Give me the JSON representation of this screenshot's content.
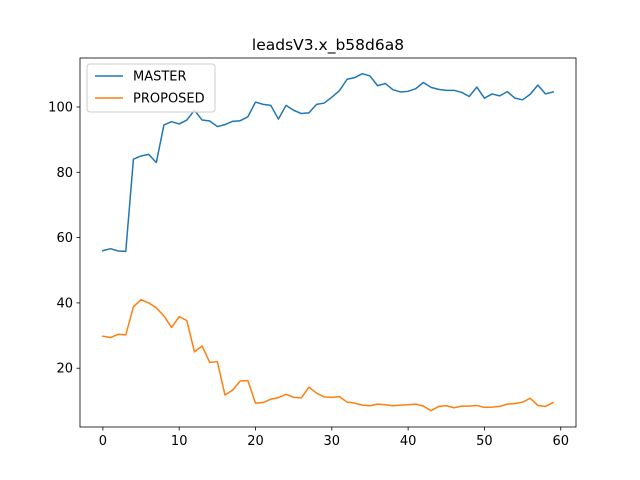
{
  "chart_data": {
    "type": "line",
    "title": "leadsV3.x_b58d6a8",
    "xlabel": "",
    "ylabel": "",
    "xlim": [
      -3,
      62
    ],
    "ylim": [
      2,
      115
    ],
    "xticks": [
      0,
      10,
      20,
      30,
      40,
      50,
      60
    ],
    "yticks": [
      20,
      40,
      60,
      80,
      100
    ],
    "grid": false,
    "legend": "top-left",
    "x": [
      0,
      1,
      2,
      3,
      4,
      5,
      6,
      7,
      8,
      9,
      10,
      11,
      12,
      13,
      14,
      15,
      16,
      17,
      18,
      19,
      20,
      21,
      22,
      23,
      24,
      25,
      26,
      27,
      28,
      29,
      30,
      31,
      32,
      33,
      34,
      35,
      36,
      37,
      38,
      39,
      40,
      41,
      42,
      43,
      44,
      45,
      46,
      47,
      48,
      49,
      50,
      51,
      52,
      53,
      54,
      55,
      56,
      57,
      58,
      59
    ],
    "series": [
      {
        "name": "MASTER",
        "color": "#1f77b4",
        "values": [
          56,
          56.6,
          55.9,
          55.8,
          84,
          85,
          85.5,
          83,
          94.5,
          95.5,
          94.8,
          96,
          99,
          96,
          95.7,
          94,
          94.6,
          95.6,
          95.8,
          97,
          101.5,
          100.8,
          100.5,
          96.3,
          100.5,
          99,
          98,
          98.2,
          100.8,
          101.2,
          103,
          105,
          108.5,
          109,
          110.2,
          109.5,
          106.5,
          107.2,
          105.3,
          104.6,
          104.8,
          105.6,
          107.5,
          106,
          105.4,
          105.1,
          105.1,
          104.5,
          103.2,
          106.1,
          102.7,
          104,
          103.4,
          104.7,
          102.7,
          102.2,
          103.9,
          106.7,
          104,
          104.6
        ]
      },
      {
        "name": "PROPOSED",
        "color": "#ff7f0e",
        "values": [
          29.8,
          29.4,
          30.4,
          30.2,
          38.8,
          41,
          40,
          38.5,
          36,
          32.5,
          35.8,
          34.6,
          25,
          26.8,
          21.8,
          22,
          11.8,
          13.3,
          16.1,
          16.2,
          9.3,
          9.5,
          10.5,
          11,
          12,
          11.1,
          10.9,
          14.2,
          12.4,
          11.2,
          11.1,
          11.3,
          9.6,
          9.3,
          8.7,
          8.5,
          9,
          8.8,
          8.5,
          8.7,
          8.8,
          9,
          8.4,
          7,
          8.3,
          8.5,
          7.9,
          8.4,
          8.4,
          8.6,
          8,
          8.1,
          8.3,
          9,
          9.2,
          9.6,
          10.8,
          8.6,
          8.3,
          9.5
        ]
      }
    ]
  }
}
